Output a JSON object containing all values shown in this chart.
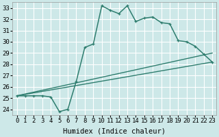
{
  "xlabel": "Humidex (Indice chaleur)",
  "xlim": [
    -0.5,
    23.5
  ],
  "ylim": [
    23.5,
    33.5
  ],
  "xticks": [
    0,
    1,
    2,
    3,
    4,
    5,
    6,
    7,
    8,
    9,
    10,
    11,
    12,
    13,
    14,
    15,
    16,
    17,
    18,
    19,
    20,
    21,
    22,
    23
  ],
  "yticks": [
    24,
    25,
    26,
    27,
    28,
    29,
    30,
    31,
    32,
    33
  ],
  "background_color": "#cde8e8",
  "grid_color": "#ffffff",
  "line_color": "#2e7d6e",
  "diag_line1": {
    "x": [
      0,
      23
    ],
    "y": [
      25.2,
      28.2
    ]
  },
  "diag_line2": {
    "x": [
      0,
      23
    ],
    "y": [
      25.2,
      29.0
    ]
  },
  "main_curve": {
    "x": [
      0,
      1,
      2,
      3,
      4,
      5,
      6,
      7,
      8,
      9,
      10,
      11,
      12,
      13,
      14,
      15,
      16,
      17,
      18,
      19,
      20,
      21,
      22,
      23
    ],
    "y": [
      25.2,
      25.2,
      25.2,
      25.2,
      25.1,
      23.8,
      24.0,
      26.5,
      29.5,
      29.8,
      33.2,
      32.8,
      32.5,
      33.2,
      31.8,
      32.1,
      32.2,
      31.7,
      31.6,
      30.1,
      30.0,
      29.6,
      28.9,
      28.2
    ]
  },
  "fontsize_ticks": 6.5,
  "fontsize_label": 7.5
}
